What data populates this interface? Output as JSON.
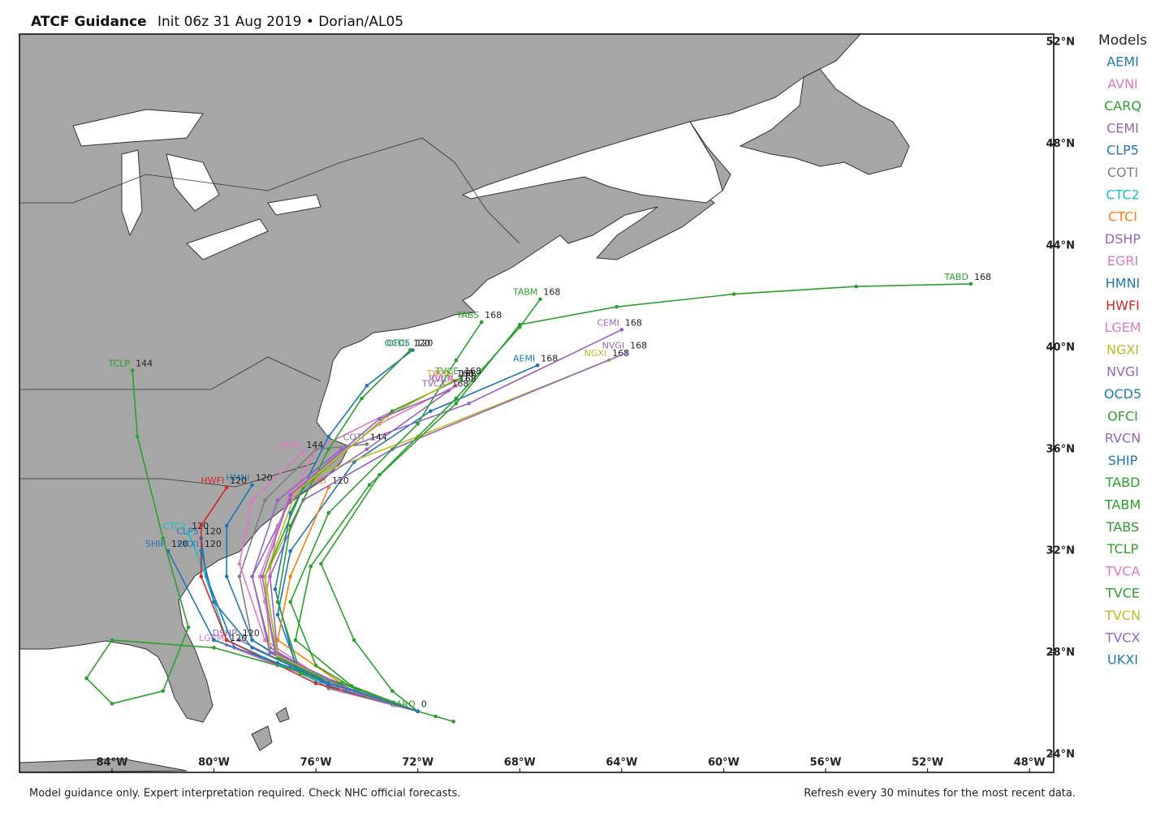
{
  "title": "ATCF Guidance",
  "subtitle": "Init 06z 31 Aug 2019 • Dorian/AL05",
  "legend_title": "Models",
  "footer_left": "Model guidance only. Expert interpretation required. Check NHC official forecasts.",
  "footer_right": "Refresh every 30 minutes for the most recent data.",
  "map": {
    "lon_range": [
      -87.63,
      -47.05
    ],
    "lat_range": [
      23.3,
      52.32
    ],
    "lon_ticks": [
      {
        "value": -84,
        "label": "84°W"
      },
      {
        "value": -80,
        "label": "80°W"
      },
      {
        "value": -76,
        "label": "76°W"
      },
      {
        "value": -72,
        "label": "72°W"
      },
      {
        "value": -68,
        "label": "68°W"
      },
      {
        "value": -64,
        "label": "64°W"
      },
      {
        "value": -60,
        "label": "60°W"
      },
      {
        "value": -56,
        "label": "56°W"
      },
      {
        "value": -52,
        "label": "52°W"
      },
      {
        "value": -48,
        "label": "48°W"
      }
    ],
    "lat_ticks": [
      {
        "value": 52,
        "label": "52°N"
      },
      {
        "value": 48,
        "label": "48°N"
      },
      {
        "value": 44,
        "label": "44°N"
      },
      {
        "value": 40,
        "label": "40°N"
      },
      {
        "value": 36,
        "label": "36°N"
      },
      {
        "value": 32,
        "label": "32°N"
      },
      {
        "value": 28,
        "label": "28°N"
      },
      {
        "value": 24,
        "label": "24°N"
      }
    ]
  },
  "models": [
    {
      "name": "AEMI",
      "color": "#1f77b4",
      "end_hour": 168,
      "lon": [
        -72.0,
        -74.5,
        -76.8,
        -77.5,
        -77.0,
        -74.5,
        -71.5,
        -67.3
      ],
      "lat": [
        25.7,
        26.5,
        27.6,
        29.5,
        32.0,
        35.5,
        37.5,
        39.3
      ]
    },
    {
      "name": "AVNI",
      "color": "#e377c2",
      "end_hour": 168,
      "lon": [
        -72.0,
        -75.0,
        -77.5,
        -78.0,
        -77.5,
        -76.0,
        -73.0,
        -70.5
      ],
      "lat": [
        25.7,
        26.6,
        27.8,
        30.0,
        33.0,
        36.0,
        37.5,
        38.7
      ]
    },
    {
      "name": "CARQ",
      "color": "#2ca02c",
      "end_hour": 0,
      "lon": [
        -70.6,
        -71.3,
        -72.0
      ],
      "lat": [
        25.3,
        25.5,
        25.7
      ]
    },
    {
      "name": "CEMI",
      "color": "#9467bd",
      "end_hour": 168,
      "lon": [
        -72.0,
        -75.0,
        -77.8,
        -78.5,
        -77.5,
        -75.0,
        -70.0,
        -64.0
      ],
      "lat": [
        25.7,
        26.6,
        28.2,
        31.0,
        34.0,
        36.0,
        37.8,
        40.7
      ]
    },
    {
      "name": "CLP5",
      "color": "#1f77b4",
      "end_hour": 120,
      "lon": [
        -72.0,
        -75.5,
        -79.2,
        -80.3,
        -80.5
      ],
      "lat": [
        25.7,
        26.8,
        28.2,
        31.0,
        32.5
      ]
    },
    {
      "name": "COTI",
      "color": "#7f7f7f",
      "end_hour": 144,
      "lon": [
        -72.0,
        -75.5,
        -78.5,
        -79.0,
        -78.0,
        -76.0,
        -74.0
      ],
      "lat": [
        25.7,
        26.6,
        28.5,
        31.0,
        34.0,
        36.0,
        36.2
      ]
    },
    {
      "name": "CTC2",
      "color": "#17becf",
      "end_hour": 120,
      "lon": [
        -72.0,
        -76.0,
        -79.5,
        -80.5,
        -81.0
      ],
      "lat": [
        25.7,
        26.9,
        28.5,
        31.5,
        32.7
      ]
    },
    {
      "name": "CTCI",
      "color": "#ff7f0e",
      "end_hour": 120,
      "lon": [
        -72.0,
        -75.0,
        -77.5,
        -77.0,
        -75.5
      ],
      "lat": [
        25.7,
        26.8,
        28.5,
        31.0,
        34.5
      ]
    },
    {
      "name": "DSHP",
      "color": "#9467bd",
      "end_hour": 120,
      "lon": [
        -72.0,
        -75.0,
        -77.0,
        -79.0
      ],
      "lat": [
        25.7,
        26.8,
        27.5,
        28.5
      ]
    },
    {
      "name": "EGRI",
      "color": "#e377c2",
      "end_hour": 144,
      "lon": [
        -72.0,
        -75.0,
        -78.0,
        -79.0,
        -78.5,
        -76.5
      ],
      "lat": [
        25.7,
        26.5,
        28.5,
        31.5,
        34.0,
        35.9
      ]
    },
    {
      "name": "HMNI",
      "color": "#1f77b4",
      "end_hour": 120,
      "lon": [
        -72.0,
        -75.5,
        -78.5,
        -79.5,
        -79.5,
        -78.5
      ],
      "lat": [
        25.7,
        26.7,
        28.5,
        31.0,
        33.0,
        34.6
      ]
    },
    {
      "name": "HWFI",
      "color": "#d62728",
      "end_hour": 120,
      "lon": [
        -72.0,
        -76.0,
        -79.5,
        -80.5,
        -80.5,
        -79.5
      ],
      "lat": [
        25.7,
        26.8,
        28.5,
        31.0,
        33.0,
        34.5
      ]
    },
    {
      "name": "LGEM",
      "color": "#e377c2",
      "end_hour": 120,
      "lon": [
        -72.0,
        -75.0,
        -77.5,
        -79.5
      ],
      "lat": [
        25.7,
        26.7,
        27.5,
        28.3
      ]
    },
    {
      "name": "NGXI",
      "color": "#bcbd22",
      "end_hour": 168,
      "lon": [
        -72.0,
        -75.0,
        -77.8,
        -78.0,
        -76.0,
        -72.0,
        -64.5
      ],
      "lat": [
        25.7,
        26.6,
        28.0,
        31.0,
        35.0,
        36.5,
        39.5
      ]
    },
    {
      "name": "NVGI",
      "color": "#9467bd",
      "end_hour": 168,
      "lon": [
        -72.0,
        -75.0,
        -77.5,
        -77.8,
        -76.5,
        -73.0,
        -63.8
      ],
      "lat": [
        25.7,
        26.6,
        28.0,
        31.0,
        34.0,
        36.0,
        39.8
      ]
    },
    {
      "name": "OCD5",
      "color": "#1f77b4",
      "end_hour": 120,
      "lon": [
        -72.0,
        -74.8,
        -76.8,
        -77.6,
        -77.0,
        -75.5,
        -74.0,
        -72.2
      ],
      "lat": [
        25.7,
        26.5,
        27.5,
        30.5,
        33.5,
        36.5,
        38.5,
        39.9
      ]
    },
    {
      "name": "OFCI",
      "color": "#2ca02c",
      "end_hour": 120,
      "lon": [
        -72.0,
        -74.5,
        -76.6,
        -77.5,
        -77.0,
        -75.5,
        -74.2,
        -72.3
      ],
      "lat": [
        25.7,
        26.5,
        27.2,
        30.0,
        33.0,
        36.0,
        38.0,
        39.9
      ]
    },
    {
      "name": "RVCN",
      "color": "#9467bd",
      "end_hour": 168,
      "lon": [
        -72.0,
        -75.0,
        -77.8,
        -78.5,
        -77.0,
        -74.0,
        -70.5
      ],
      "lat": [
        25.7,
        26.6,
        28.0,
        31.0,
        34.0,
        36.0,
        38.5
      ]
    },
    {
      "name": "SHIP",
      "color": "#1f77b4",
      "end_hour": 120,
      "lon": [
        -72.0,
        -75.0,
        -77.5,
        -80.0,
        -81.8
      ],
      "lat": [
        25.7,
        26.7,
        27.6,
        28.5,
        32.0
      ]
    },
    {
      "name": "TABD",
      "color": "#2ca02c",
      "end_hour": 168,
      "lon": [
        -72.0,
        -74.6,
        -76.8,
        -76.2,
        -73.9,
        -70.5,
        -68.0,
        -64.2,
        -59.6,
        -54.8,
        -50.3
      ],
      "lat": [
        25.7,
        26.7,
        28.5,
        31.4,
        34.6,
        37.8,
        40.9,
        41.6,
        42.1,
        42.4,
        42.5
      ]
    },
    {
      "name": "TABM",
      "color": "#2ca02c",
      "end_hour": 168,
      "lon": [
        -72.0,
        -73.0,
        -74.5,
        -75.8,
        -73.5,
        -70.5,
        -68.0,
        -67.2
      ],
      "lat": [
        25.7,
        26.5,
        28.5,
        31.5,
        35.0,
        38.0,
        40.8,
        41.9
      ]
    },
    {
      "name": "TABS",
      "color": "#2ca02c",
      "end_hour": 168,
      "lon": [
        -72.0,
        -74.0,
        -76.0,
        -77.0,
        -75.5,
        -72.0,
        -70.5,
        -69.5
      ],
      "lat": [
        25.7,
        26.3,
        27.5,
        30.0,
        33.5,
        37.0,
        39.5,
        41.0
      ]
    },
    {
      "name": "TCLP",
      "color": "#2ca02c",
      "end_hour": 144,
      "lon": [
        -72.0,
        -75.0,
        -80.0,
        -84.0,
        -85.0,
        -84.0,
        -82.0,
        -81.0,
        -82.0,
        -83.0,
        -83.2
      ],
      "lat": [
        25.7,
        26.8,
        28.2,
        28.5,
        27.0,
        26.0,
        26.5,
        29.0,
        32.5,
        36.5,
        39.1
      ]
    },
    {
      "name": "TVCA",
      "color": "#e377c2",
      "end_hour": 168,
      "lon": [
        -72.0,
        -75.0,
        -77.6,
        -78.2,
        -77.0,
        -73.5,
        -70.5
      ],
      "lat": [
        25.7,
        26.6,
        28.0,
        31.0,
        34.3,
        37.0,
        38.5
      ]
    },
    {
      "name": "TVCE",
      "color": "#2ca02c",
      "end_hour": 168,
      "lon": [
        -72.0,
        -74.8,
        -77.5,
        -78.0,
        -76.5,
        -73.0,
        -70.3
      ],
      "lat": [
        25.7,
        26.6,
        27.8,
        31.0,
        34.5,
        37.5,
        38.8
      ]
    },
    {
      "name": "TVCN",
      "color": "#bcbd22",
      "end_hour": 168,
      "lon": [
        -72.0,
        -74.8,
        -77.5,
        -78.0,
        -76.8,
        -73.2,
        -70.6
      ],
      "lat": [
        25.7,
        26.6,
        27.9,
        31.0,
        34.3,
        37.3,
        38.7
      ]
    },
    {
      "name": "TVCX",
      "color": "#9467bd",
      "end_hour": 168,
      "lon": [
        -72.0,
        -74.8,
        -77.6,
        -78.1,
        -77.0,
        -73.5,
        -70.8
      ],
      "lat": [
        25.7,
        26.6,
        28.0,
        31.0,
        34.2,
        37.2,
        38.3
      ]
    },
    {
      "name": "UKXI",
      "color": "#1f77b4",
      "end_hour": 120,
      "lon": [
        -72.0,
        -75.5,
        -78.5,
        -80.0,
        -80.5
      ],
      "lat": [
        25.7,
        26.8,
        28.2,
        30.0,
        32.0
      ]
    }
  ]
}
